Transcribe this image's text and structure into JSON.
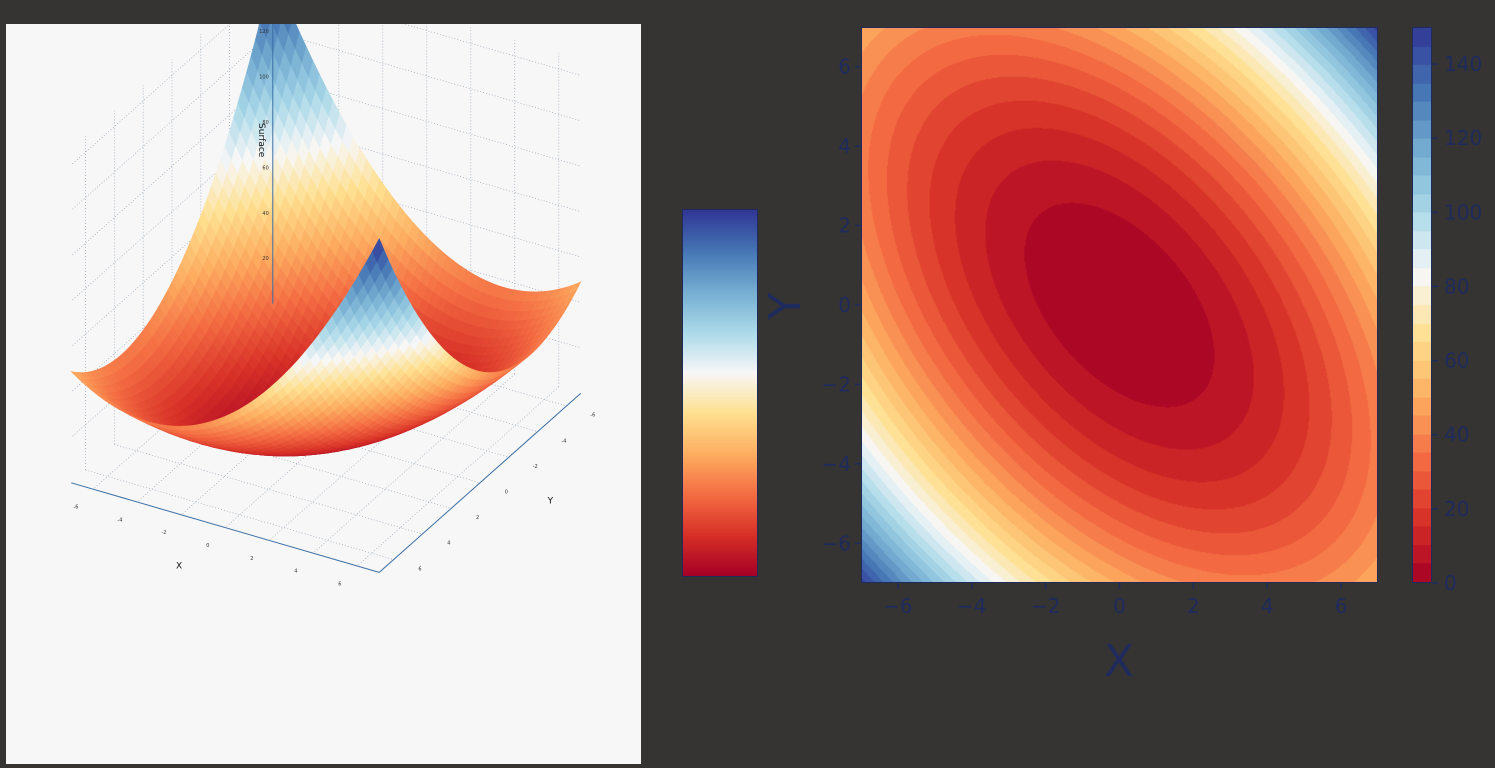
{
  "chart_data": [
    {
      "type": "surface3d",
      "function": "z = x^2 + y^2 + x*y",
      "x_range": [
        -7,
        7
      ],
      "y_range": [
        -7,
        7
      ],
      "z_range": [
        0,
        147
      ],
      "xlabel": "X",
      "ylabel": "Y",
      "zlabel": "Surface",
      "x_ticks": [
        "-6",
        "-4",
        "-2",
        "0",
        "2",
        "4",
        "6"
      ],
      "y_ticks": [
        "-6",
        "-4",
        "-2",
        "0",
        "2",
        "4",
        "6"
      ],
      "z_ticks": [
        "20",
        "40",
        "60",
        "80",
        "100",
        "120",
        "140"
      ],
      "colormap": "RdYlBu",
      "grid": true
    },
    {
      "type": "heatmap",
      "subtype": "filled-contour",
      "function": "z = x^2 + y^2 + x*y",
      "xlim": [
        -7,
        7
      ],
      "ylim": [
        -7,
        7
      ],
      "xlabel": "X",
      "ylabel": "Y",
      "x_ticks": [
        "−6",
        "−4",
        "−2",
        "0",
        "2",
        "4",
        "6"
      ],
      "y_ticks": [
        "−6",
        "−4",
        "−2",
        "0",
        "2",
        "4",
        "6"
      ],
      "levels": [
        0,
        5,
        10,
        15,
        20,
        25,
        30,
        35,
        40,
        45,
        50,
        55,
        60,
        65,
        70,
        75,
        80,
        85,
        90,
        95,
        100,
        105,
        110,
        115,
        120,
        125,
        130,
        135,
        140,
        145,
        150
      ],
      "colorbar": {
        "range": [
          0,
          150
        ],
        "ticks": [
          "0",
          "20",
          "40",
          "60",
          "80",
          "100",
          "120",
          "140"
        ],
        "position": "right"
      }
    }
  ],
  "colormap_stops": [
    "#a50026",
    "#d73027",
    "#f46d43",
    "#fdae61",
    "#fee090",
    "#f7f7f7",
    "#abd9e9",
    "#74add1",
    "#4575b4",
    "#313695"
  ],
  "accent_color": "#1e2b5c",
  "background_color": "#353433",
  "panel_color": "#f7f7f7"
}
